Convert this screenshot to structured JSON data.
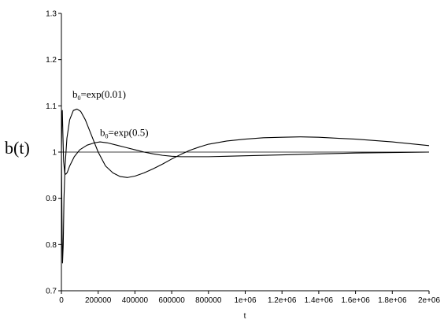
{
  "chart_data": {
    "type": "line",
    "xlabel": "t",
    "ylabel": "b(t)",
    "xlim": [
      0,
      2000000
    ],
    "ylim": [
      0.7,
      1.3
    ],
    "grid": false,
    "x_ticks": [
      0,
      200000,
      400000,
      600000,
      800000,
      1000000,
      1200000,
      1400000,
      1600000,
      1800000,
      2000000
    ],
    "x_tick_labels": [
      "0",
      "200000",
      "400000",
      "600000",
      "800000",
      "1e+06",
      "1.2e+06",
      "1.4e+06",
      "1.6e+06",
      "1.8e+06",
      "2e+06"
    ],
    "y_ticks": [
      0.7,
      0.8,
      0.9,
      1.0,
      1.1,
      1.2,
      1.3
    ],
    "y_tick_labels": [
      "0.7",
      "0.8",
      "0.9",
      "1",
      "1.1",
      "1.2",
      "1.3"
    ],
    "reference_line": 1.0,
    "series": [
      {
        "points": [
          [
            0,
            1.0
          ],
          [
            3000,
            0.86
          ],
          [
            6000,
            0.76
          ],
          [
            10000,
            0.8
          ],
          [
            14000,
            0.9
          ],
          [
            20000,
            0.97
          ],
          [
            30000,
            1.03
          ],
          [
            45000,
            1.07
          ],
          [
            65000,
            1.09
          ],
          [
            85000,
            1.093
          ],
          [
            105000,
            1.088
          ],
          [
            130000,
            1.07
          ],
          [
            160000,
            1.04
          ],
          [
            200000,
            1.0
          ],
          [
            240000,
            0.97
          ],
          [
            280000,
            0.955
          ],
          [
            320000,
            0.947
          ],
          [
            360000,
            0.945
          ],
          [
            400000,
            0.948
          ],
          [
            450000,
            0.955
          ],
          [
            500000,
            0.964
          ],
          [
            550000,
            0.974
          ],
          [
            600000,
            0.985
          ],
          [
            650000,
            0.995
          ],
          [
            700000,
            1.004
          ],
          [
            750000,
            1.011
          ],
          [
            800000,
            1.017
          ],
          [
            900000,
            1.024
          ],
          [
            1000000,
            1.028
          ],
          [
            1100000,
            1.031
          ],
          [
            1200000,
            1.032
          ],
          [
            1300000,
            1.033
          ],
          [
            1400000,
            1.032
          ],
          [
            1500000,
            1.03
          ],
          [
            1600000,
            1.028
          ],
          [
            1700000,
            1.025
          ],
          [
            1800000,
            1.022
          ],
          [
            1900000,
            1.018
          ],
          [
            2000000,
            1.014
          ]
        ]
      },
      {
        "points": [
          [
            0,
            1.0
          ],
          [
            3000,
            1.08
          ],
          [
            5000,
            1.09
          ],
          [
            8000,
            1.04
          ],
          [
            12000,
            0.98
          ],
          [
            18000,
            0.955
          ],
          [
            24000,
            0.952
          ],
          [
            32000,
            0.956
          ],
          [
            45000,
            0.97
          ],
          [
            70000,
            0.99
          ],
          [
            100000,
            1.005
          ],
          [
            140000,
            1.015
          ],
          [
            180000,
            1.02
          ],
          [
            210000,
            1.022
          ],
          [
            250000,
            1.02
          ],
          [
            300000,
            1.015
          ],
          [
            350000,
            1.01
          ],
          [
            400000,
            1.005
          ],
          [
            450000,
            1.0
          ],
          [
            500000,
            0.996
          ],
          [
            550000,
            0.993
          ],
          [
            600000,
            0.991
          ],
          [
            650000,
            0.99
          ],
          [
            700000,
            0.99
          ],
          [
            800000,
            0.99
          ],
          [
            900000,
            0.991
          ],
          [
            1000000,
            0.992
          ],
          [
            1200000,
            0.994
          ],
          [
            1400000,
            0.996
          ],
          [
            1600000,
            0.998
          ],
          [
            1800000,
            0.999
          ],
          [
            2000000,
            1.0
          ]
        ]
      }
    ],
    "annotations": [
      {
        "base": "b",
        "sub": "0",
        "rest": "=exp(0.01)",
        "x": 60000,
        "y": 1.118
      },
      {
        "base": "b",
        "sub": "0",
        "rest": "=exp(0.5)",
        "x": 210000,
        "y": 1.035
      }
    ]
  }
}
